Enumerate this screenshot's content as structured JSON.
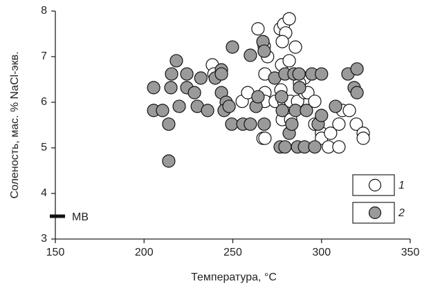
{
  "chart_data": {
    "type": "scatter",
    "x_label": "Температура, °C",
    "y_label": "Соленость, мас. % NaCl-экв.",
    "xlim": [
      150,
      350
    ],
    "ylim": [
      3,
      8
    ],
    "xticks": [
      150,
      200,
      250,
      300,
      350
    ],
    "yticks": [
      3,
      4,
      5,
      6,
      7,
      8
    ],
    "legend_position": "lower right",
    "series": [
      {
        "name": "1",
        "color": "#ffffff",
        "x": [
          238.5,
          239.4,
          255.3,
          258.4,
          264.2,
          267.0,
          267.7,
          268.1,
          268.1,
          268.1,
          268.1,
          269.6,
          273.9,
          276.7,
          278.7,
          279.8,
          281.8,
          277.9,
          277.5,
          281.8,
          285.3,
          277.1,
          278.7,
          282.6,
          277.9,
          282.6,
          286.5,
          290.4,
          292.3,
          296.2,
          296.2,
          300.0,
          300.0,
          303.9,
          305.1,
          309.8,
          309.8,
          311.8,
          315.7,
          319.6,
          323.5,
          323.5,
          290.4,
          287.6
        ],
        "values": [
          6.82,
          6.62,
          6.02,
          6.21,
          7.61,
          5.21,
          7.23,
          6.62,
          6.21,
          6.02,
          5.21,
          7.0,
          6.02,
          7.61,
          7.71,
          7.52,
          7.83,
          7.33,
          6.82,
          6.91,
          7.21,
          6.27,
          6.02,
          6.02,
          5.62,
          5.62,
          6.02,
          6.21,
          6.21,
          6.02,
          5.52,
          5.32,
          5.21,
          5.02,
          5.32,
          5.52,
          5.02,
          5.82,
          5.82,
          5.52,
          5.32,
          5.21,
          6.53,
          6.42
        ]
      },
      {
        "name": "2",
        "color": "#9a9a9a",
        "x": [
          205.4,
          205.4,
          210.4,
          213.9,
          213.9,
          215.5,
          215.1,
          218.2,
          219.8,
          224.1,
          224.1,
          228.4,
          230.0,
          232.0,
          235.8,
          240.1,
          243.6,
          243.6,
          243.6,
          246.3,
          245.1,
          249.8,
          249.4,
          247.9,
          255.7,
          259.9,
          259.9,
          263.1,
          264.2,
          267.0,
          267.7,
          267.7,
          273.6,
          276.7,
          277.5,
          277.9,
          279.4,
          279.4,
          281.8,
          283.3,
          284.5,
          285.3,
          286.5,
          287.3,
          287.6,
          290.4,
          291.5,
          294.6,
          296.2,
          298.1,
          300.0,
          300.0,
          307.9,
          314.9,
          318.4,
          320.0,
          320.0
        ],
        "values": [
          6.32,
          5.82,
          5.82,
          5.52,
          4.71,
          6.62,
          6.32,
          6.91,
          5.91,
          6.62,
          6.32,
          6.21,
          5.91,
          6.53,
          5.82,
          6.53,
          6.71,
          6.62,
          6.21,
          6.0,
          5.82,
          7.21,
          5.52,
          5.91,
          5.52,
          7.03,
          5.52,
          5.91,
          6.12,
          7.33,
          7.12,
          5.52,
          6.53,
          5.02,
          6.12,
          5.82,
          6.62,
          5.02,
          5.32,
          5.52,
          6.62,
          5.82,
          5.02,
          6.62,
          6.32,
          5.02,
          5.82,
          6.62,
          5.02,
          5.52,
          6.62,
          5.71,
          5.91,
          6.62,
          6.32,
          6.73,
          6.21
        ]
      }
    ],
    "annotations": [
      {
        "text": "МВ",
        "y": 3.5
      }
    ]
  }
}
